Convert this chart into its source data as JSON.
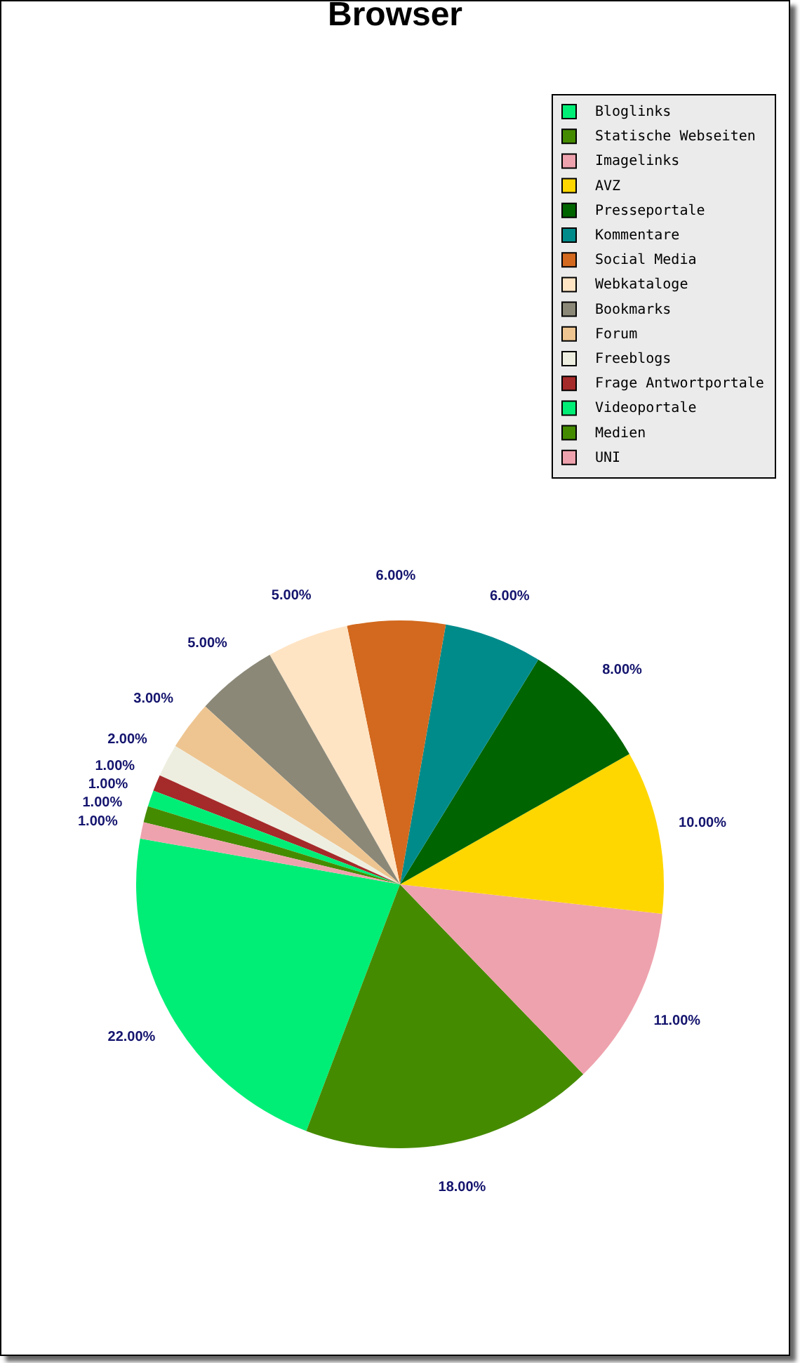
{
  "chart_data": {
    "type": "pie",
    "title": "Browser",
    "categories": [
      "Bloglinks",
      "Statische Webseiten",
      "Imagelinks",
      "AVZ",
      "Presseportale",
      "Kommentare",
      "Social Media",
      "Webkataloge",
      "Bookmarks",
      "Forum",
      "Freeblogs",
      "Frage Antwortportale",
      "Videoportale",
      "Medien",
      "UNI"
    ],
    "values": [
      22,
      18,
      11,
      10,
      8,
      6,
      6,
      5,
      5,
      3,
      2,
      1,
      1,
      1,
      1
    ],
    "colors": [
      "#00ee76",
      "#458b00",
      "#eea2ad",
      "#ffd700",
      "#006400",
      "#008b8b",
      "#d2691e",
      "#ffe4c4",
      "#8b8878",
      "#eec591",
      "#eeeee0",
      "#a52a2a",
      "#00ee76",
      "#458b00",
      "#eea2ad"
    ],
    "value_labels": [
      "22.00%",
      "18.00%",
      "11.00%",
      "10.00%",
      "8.00%",
      "6.00%",
      "6.00%",
      "5.00%",
      "5.00%",
      "3.00%",
      "2.00%",
      "1.00%",
      "1.00%",
      "1.00%",
      "1.00%"
    ],
    "legend": "top right"
  }
}
